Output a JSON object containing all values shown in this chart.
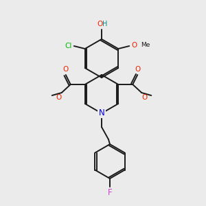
{
  "bg_color": "#ebebeb",
  "bond_color": "#1a1a1a",
  "colors": {
    "Cl": "#00bb00",
    "O": "#ee2200",
    "H": "#008888",
    "N": "#0000dd",
    "F": "#cc44cc",
    "C": "#1a1a1a"
  },
  "lw": 1.4
}
